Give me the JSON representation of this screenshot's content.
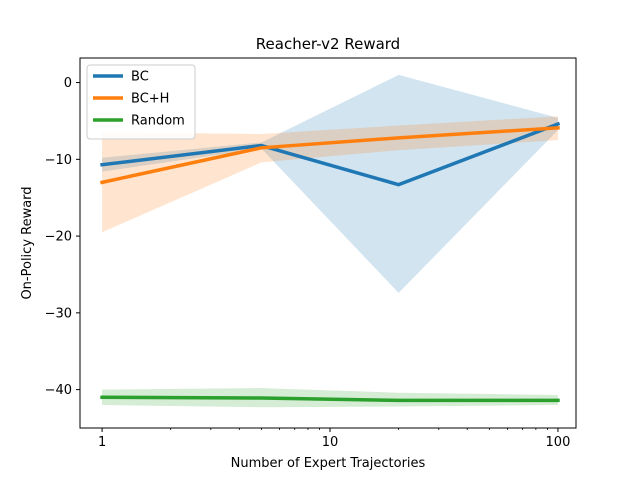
{
  "chart_data": {
    "type": "line",
    "title": "Reacher-v2 Reward",
    "xlabel": "Number of Expert Trajectories",
    "ylabel": "On-Policy Reward",
    "xscale": "log",
    "xlim": [
      0.8,
      120
    ],
    "ylim": [
      -45,
      3.2
    ],
    "xticks": [
      {
        "value": 1,
        "label": "1"
      },
      {
        "value": 10,
        "label": "10"
      },
      {
        "value": 100,
        "label": "100"
      }
    ],
    "yticks": [
      {
        "value": 0,
        "label": "0"
      },
      {
        "value": -10,
        "label": "−10"
      },
      {
        "value": -20,
        "label": "−20"
      },
      {
        "value": -30,
        "label": "−30"
      },
      {
        "value": -40,
        "label": "−40"
      }
    ],
    "grid": false,
    "legend_position": "top-left",
    "series": [
      {
        "name": "BC",
        "color": "#1f77b4",
        "x": [
          1,
          5,
          20,
          100
        ],
        "y": [
          -10.7,
          -8.2,
          -13.3,
          -5.4
        ],
        "band_low": [
          -11.6,
          -8.6,
          -27.4,
          -6.2
        ],
        "band_high": [
          -9.8,
          -7.8,
          1.0,
          -4.6
        ]
      },
      {
        "name": "BC+H",
        "color": "#ff7f0e",
        "x": [
          1,
          5,
          20,
          100
        ],
        "y": [
          -13.0,
          -8.5,
          -7.2,
          -5.9
        ],
        "band_low": [
          -19.5,
          -10.4,
          -8.8,
          -7.5
        ],
        "band_high": [
          -6.5,
          -6.7,
          -5.6,
          -4.4
        ]
      },
      {
        "name": "Random",
        "color": "#2ca02c",
        "x": [
          1,
          5,
          20,
          100
        ],
        "y": [
          -41.0,
          -41.1,
          -41.4,
          -41.4
        ],
        "band_low": [
          -42.0,
          -42.3,
          -42.2,
          -42.0
        ],
        "band_high": [
          -40.0,
          -39.8,
          -40.4,
          -40.7
        ]
      }
    ]
  }
}
